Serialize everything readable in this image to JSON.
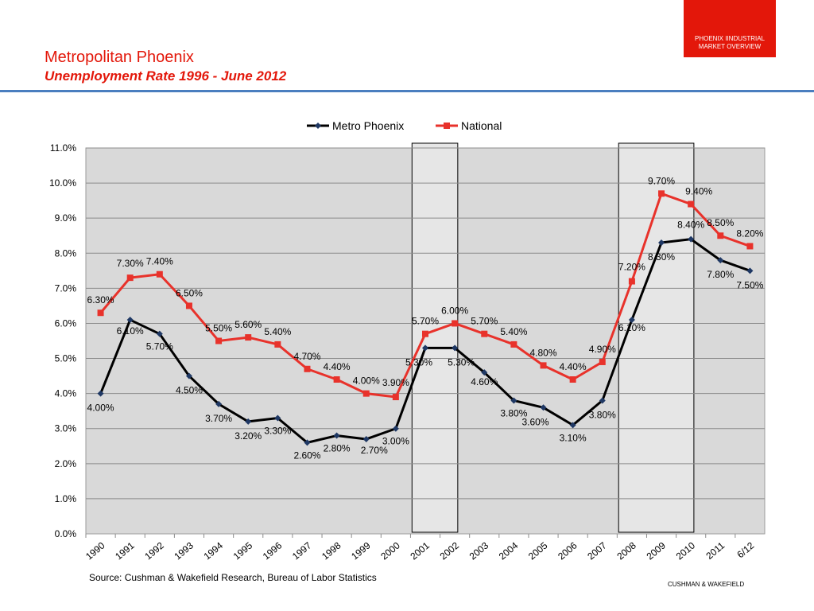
{
  "header": {
    "brand_box": [
      "PHOENIX IINDUSTRIAL",
      "MARKET OVERVIEW"
    ],
    "title": "Metropolitan Phoenix",
    "subtitle": "Unemployment Rate 1996 - June 2012"
  },
  "source": "Source: Cushman & Wakefield Research, Bureau of Labor Statistics",
  "footer_brand": "CUSHMAN & WAKEFIELD",
  "colors": {
    "brand_red": "#e3170a",
    "metro_line": "#000000",
    "metro_marker": "#1f3864",
    "national_line": "#e8322b",
    "plot_bg": "#d9d9d9",
    "highlight_bg": "#e6e6e6"
  },
  "chart_data": {
    "type": "line",
    "categories": [
      "1990",
      "1991",
      "1992",
      "1993",
      "1994",
      "1995",
      "1996",
      "1997",
      "1998",
      "1999",
      "2000",
      "2001",
      "2002",
      "2003",
      "2004",
      "2005",
      "2006",
      "2007",
      "2008",
      "2009",
      "2010",
      "2011",
      "6/12"
    ],
    "series": [
      {
        "name": "Metro Phoenix",
        "values": [
          4.0,
          6.1,
          5.7,
          4.5,
          3.7,
          3.2,
          3.3,
          2.6,
          2.8,
          2.7,
          3.0,
          5.3,
          5.3,
          4.6,
          3.8,
          3.6,
          3.1,
          3.8,
          6.1,
          8.3,
          8.4,
          7.8,
          7.5
        ],
        "labels": [
          "4.00%",
          "6.10%",
          "5.70%",
          "4.50%",
          "3.70%",
          "3.20%",
          "3.30%",
          "2.60%",
          "2.80%",
          "2.70%",
          "3.00%",
          "5.30%",
          "5.30%",
          "4.60%",
          "3.80%",
          "3.60%",
          "3.10%",
          "3.80%",
          "6.10%",
          "8.30%",
          "8.40%",
          "7.80%",
          "7.50%"
        ]
      },
      {
        "name": "National",
        "values": [
          6.3,
          7.3,
          7.4,
          6.5,
          5.5,
          5.6,
          5.4,
          4.7,
          4.4,
          4.0,
          3.9,
          5.7,
          6.0,
          5.7,
          5.4,
          4.8,
          4.4,
          4.9,
          7.2,
          9.7,
          9.4,
          8.5,
          8.2
        ],
        "labels": [
          "6.30%",
          "7.30%",
          "7.40%",
          "6.50%",
          "5.50%",
          "5.60%",
          "5.40%",
          "4.70%",
          "4.40%",
          "4.00%",
          "3.90%",
          "5.70%",
          "6.00%",
          "5.70%",
          "5.40%",
          "4.80%",
          "4.40%",
          "4.90%",
          "7.20%",
          "9.70%",
          "9.40%",
          "8.50%",
          "8.20%"
        ]
      }
    ],
    "y_ticks": [
      "0.0%",
      "1.0%",
      "2.0%",
      "3.0%",
      "4.0%",
      "5.0%",
      "6.0%",
      "7.0%",
      "8.0%",
      "9.0%",
      "10.0%",
      "11.0%"
    ],
    "ylim": [
      0,
      11
    ],
    "grid": true,
    "legend_position": "top-center",
    "highlight_ranges": [
      [
        "2001",
        "2002"
      ],
      [
        "2008",
        "2010"
      ]
    ]
  }
}
